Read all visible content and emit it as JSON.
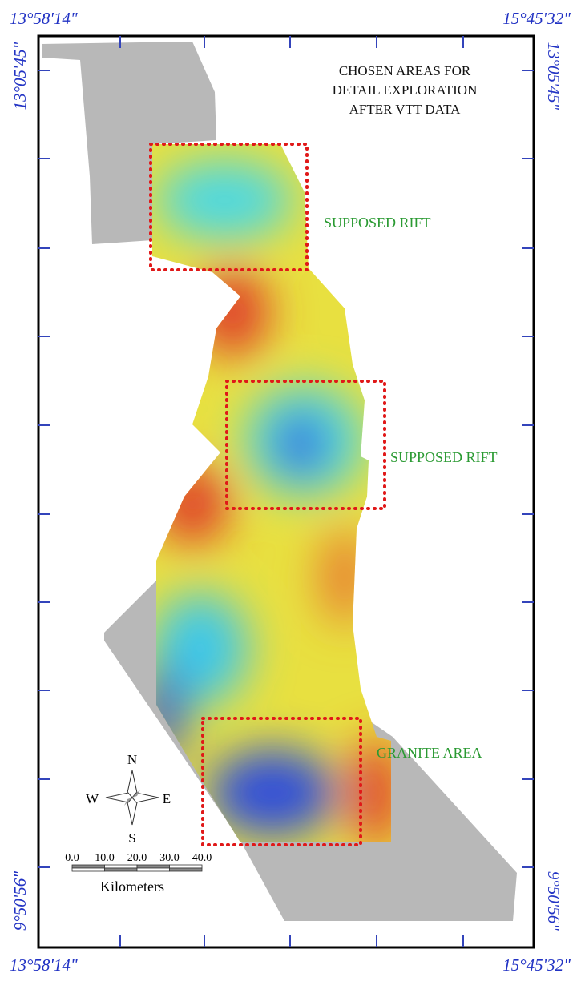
{
  "coordinates": {
    "top_left": "13°58'14\"",
    "top_right": "15°45'32\"",
    "bottom_left": "13°58'14\"",
    "bottom_right": "15°45'32\"",
    "left_top": "13°05'45\"",
    "right_top": "13°05'45\"",
    "left_bottom": "9°50'56\"",
    "right_bottom": "9°50'56\""
  },
  "title": [
    "CHOSEN AREAS FOR",
    "DETAIL EXPLORATION",
    "AFTER VTT DATA"
  ],
  "areas": [
    {
      "label": "SUPPOSED RIFT"
    },
    {
      "label": "SUPPOSED RIFT"
    },
    {
      "label": "GRANITE AREA"
    }
  ],
  "compass": {
    "n": "N",
    "s": "S",
    "e": "E",
    "w": "W"
  },
  "scale_bar": {
    "ticks": [
      "0.0",
      "10.0",
      "20.0",
      "30.0",
      "40.0"
    ],
    "unit": "Kilometers"
  }
}
